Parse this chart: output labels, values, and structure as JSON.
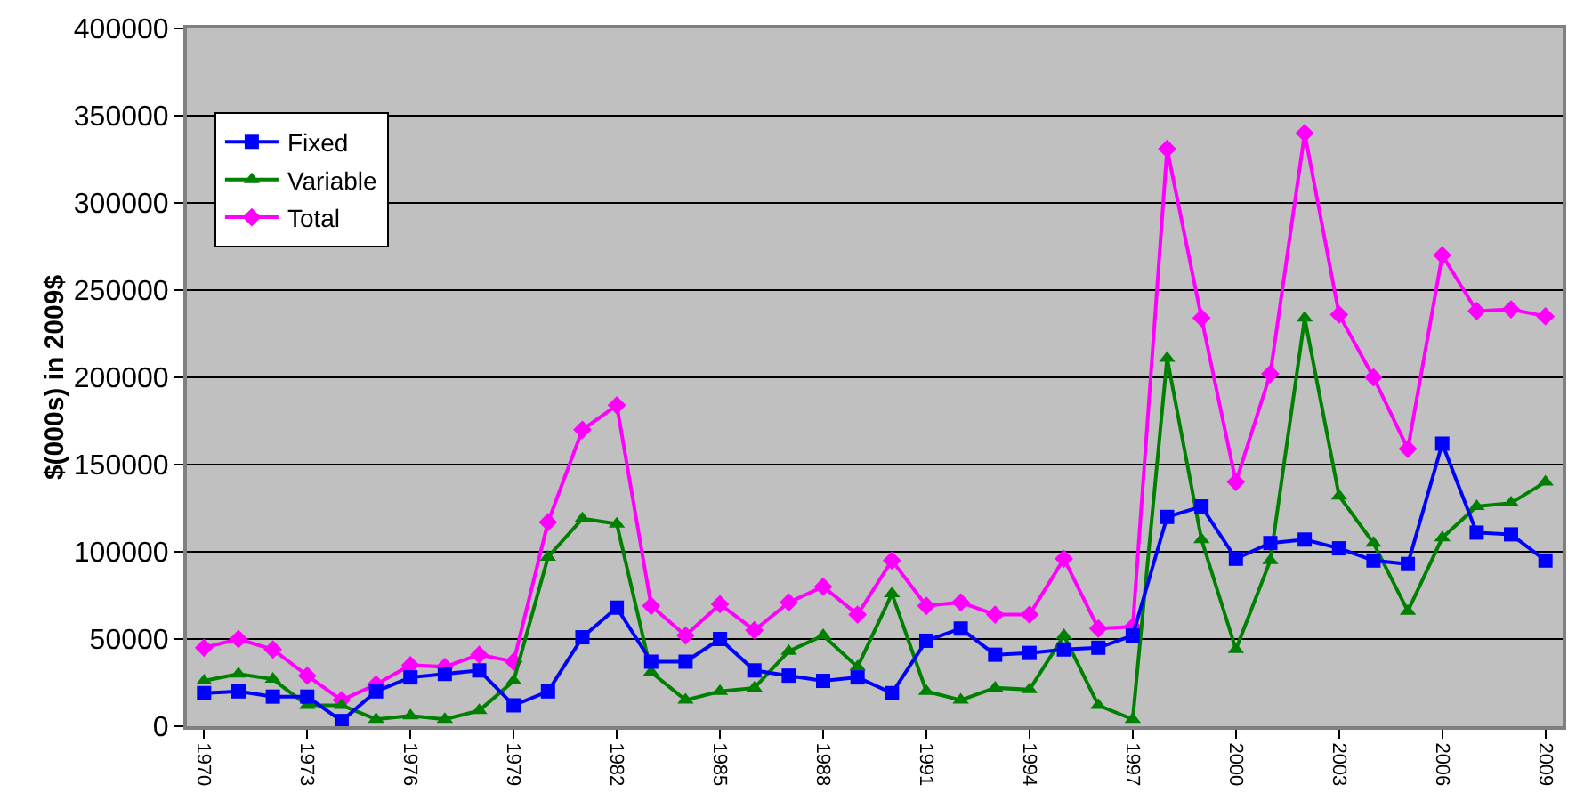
{
  "chart_data": {
    "type": "line",
    "ylabel": "$(000s) in 2009$",
    "categories": [
      "1970",
      null,
      null,
      "1973",
      null,
      null,
      "1976",
      null,
      null,
      "1979",
      null,
      null,
      "1982",
      null,
      null,
      "1985",
      null,
      null,
      "1988",
      null,
      null,
      "1991",
      null,
      null,
      "1994",
      null,
      null,
      "1997",
      null,
      null,
      "2000",
      null,
      null,
      "2003",
      null,
      null,
      "2006",
      null,
      null,
      "2009"
    ],
    "series": [
      {
        "name": "Fixed",
        "color": "#0000ff",
        "marker": "square",
        "values": [
          19000,
          20000,
          17000,
          17000,
          3000,
          20000,
          28000,
          30000,
          32000,
          12000,
          20000,
          51000,
          68000,
          37000,
          37000,
          50000,
          32000,
          29000,
          26000,
          28000,
          19000,
          49000,
          56000,
          41000,
          42000,
          44000,
          45000,
          52000,
          120000,
          126000,
          96000,
          105000,
          107000,
          102000,
          95000,
          93000,
          162000,
          111000,
          110000,
          95000
        ]
      },
      {
        "name": "Variable",
        "color": "#008000",
        "marker": "triangle",
        "values": [
          26000,
          30000,
          27000,
          12000,
          12000,
          4000,
          6000,
          4000,
          9000,
          26000,
          97000,
          119000,
          116000,
          31000,
          15000,
          20000,
          22000,
          43000,
          52000,
          34000,
          76000,
          20000,
          15000,
          22000,
          21000,
          52000,
          12000,
          4000,
          211000,
          107000,
          44000,
          95000,
          234000,
          132000,
          105000,
          66000,
          108000,
          126000,
          128000,
          140000
        ]
      },
      {
        "name": "Total",
        "color": "#ff00ff",
        "marker": "diamond",
        "values": [
          45000,
          50000,
          44000,
          29000,
          15000,
          24000,
          35000,
          34000,
          41000,
          37000,
          117000,
          170000,
          184000,
          69000,
          52000,
          70000,
          55000,
          71000,
          80000,
          64000,
          95000,
          69000,
          71000,
          64000,
          64000,
          96000,
          56000,
          57000,
          331000,
          234000,
          140000,
          202000,
          340000,
          236000,
          200000,
          159000,
          270000,
          238000,
          239000,
          235000
        ]
      }
    ],
    "ylim": [
      0,
      400000
    ],
    "yticks": [
      0,
      50000,
      100000,
      150000,
      200000,
      250000,
      300000,
      350000,
      400000
    ],
    "grid": "y",
    "legend": "top left",
    "line_style": "solid"
  }
}
